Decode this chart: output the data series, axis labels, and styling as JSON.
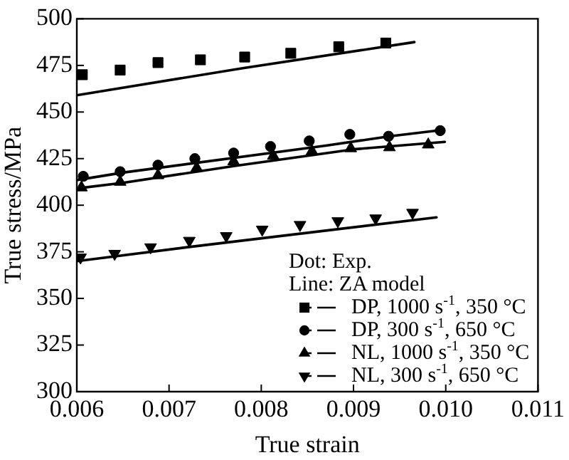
{
  "chart_data": {
    "type": "scatter",
    "xlabel": "True strain",
    "ylabel": "True stress/MPa",
    "xlim": [
      0.006,
      0.011
    ],
    "xticks": [
      0.006,
      0.007,
      0.008,
      0.009,
      {
        "value": 0.01,
        "label": "0.010"
      },
      0.011
    ],
    "ylim": [
      300,
      500
    ],
    "yticks": [
      300,
      325,
      350,
      375,
      400,
      425,
      450,
      475,
      500
    ],
    "grid": false,
    "legend": "bottom right",
    "legend_title": "Dot: Exp.\nLine: ZA model",
    "series": [
      {
        "name": "DP, 1000 s$^{-1}$, 350 °C",
        "marker": "square",
        "color": "#000000",
        "x": [
          0.00606,
          0.00647,
          0.00688,
          0.00734,
          0.00782,
          0.00832,
          0.00884,
          0.00935
        ],
        "values": [
          470,
          472.5,
          476.5,
          478,
          479.5,
          481.5,
          485,
          487
        ]
      },
      {
        "name": "DP, 300 s$^{-1}$, 650 °C",
        "marker": "circle",
        "color": "#000000",
        "x": [
          0.00607,
          0.00647,
          0.00688,
          0.00728,
          0.0077,
          0.0081,
          0.00852,
          0.00896,
          0.00938,
          0.00994
        ],
        "values": [
          415.5,
          418,
          421.5,
          425,
          428,
          431.5,
          434.5,
          438,
          437,
          440
        ]
      },
      {
        "name": "NL, 1000 s$^{-1}$, 350 °C",
        "marker": "triangle",
        "color": "#000000",
        "x": [
          0.00605,
          0.00647,
          0.00688,
          0.0073,
          0.0077,
          0.00813,
          0.00855,
          0.00897,
          0.00939,
          0.00981
        ],
        "values": [
          409.5,
          412.5,
          416,
          420,
          423.5,
          426.5,
          429,
          430.5,
          431,
          432.5
        ]
      },
      {
        "name": "NL, 300 s$^{-1}$, 650 °C",
        "marker": "triangle-down",
        "color": "#000000",
        "x": [
          0.00604,
          0.00641,
          0.0068,
          0.00722,
          0.00762,
          0.00801,
          0.00842,
          0.00883,
          0.00924,
          0.00964
        ],
        "values": [
          372,
          374,
          377.5,
          381,
          383.5,
          387,
          389.5,
          391.5,
          393,
          396
        ]
      },
      {
        "type": "line",
        "color": "#000000",
        "x": [
          0.006,
          0.0078,
          0.00966
        ],
        "values": [
          459,
          473.5,
          487.5
        ]
      },
      {
        "type": "line",
        "color": "#000000",
        "x": [
          0.006,
          0.0065,
          0.0087,
          0.0094,
          0.00998
        ],
        "values": [
          413.5,
          417.5,
          432,
          437,
          440.5
        ]
      },
      {
        "type": "line",
        "color": "#000000",
        "x": [
          0.006,
          0.0065,
          0.0077,
          0.009,
          0.00999
        ],
        "values": [
          409,
          412,
          421,
          430,
          434
        ]
      },
      {
        "type": "line",
        "color": "#000000",
        "x": [
          0.006,
          0.0072,
          0.0099
        ],
        "values": [
          370,
          377.5,
          393.5
        ]
      }
    ]
  }
}
